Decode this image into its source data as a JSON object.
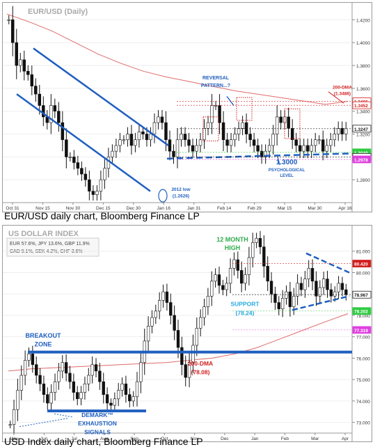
{
  "charts": {
    "eur": {
      "title": "EUR/USD (Daily)",
      "caption": "EUR/USD daily chart, Bloomberg Finance LP",
      "x_ticks": [
        "Oct 31",
        "Nov 15",
        "Nov 30",
        "Dec 15",
        "Dec 30",
        "Jan 16",
        "Jan 31",
        "Feb 14",
        "Feb 29",
        "Mar 15",
        "Mar 30",
        "Apr 16"
      ],
      "x_sublabels": [
        "2011",
        "2012"
      ],
      "y_ticks": [
        "1.4200",
        "1.4000",
        "1.3800",
        "1.3600",
        "1.3400",
        "1.3200",
        "1.3000",
        "1.2800"
      ],
      "price_tags": [
        {
          "text": "1.3486",
          "value": 1.3486,
          "color": "#d21e1e",
          "filled": false
        },
        {
          "text": "1.3452",
          "value": 1.3452,
          "color": "#d21e1e",
          "filled": false
        },
        {
          "text": "1.3247",
          "value": 1.3247,
          "color": "#1a1a1a",
          "filled": false
        },
        {
          "text": "1.3040",
          "value": 1.304,
          "color": "#2ecc40",
          "filled": true
        },
        {
          "text": "1.3000",
          "value": 1.3,
          "color": "#1a1a1a",
          "filled": false
        },
        {
          "text": "1.2978",
          "value": 1.2978,
          "color": "#e040e0",
          "filled": true
        }
      ],
      "annotations": {
        "reversal": [
          "REVERSAL",
          "PATTERN...?"
        ],
        "dma": [
          "200-DMA",
          "(1.3486)"
        ],
        "low": [
          "2012 low",
          "(1.2626)"
        ],
        "psych": [
          "1.3000",
          "PSYCHOLOGICAL",
          "LEVEL"
        ]
      }
    },
    "usd": {
      "title": "US DOLLAR INDEX",
      "caption": "USD Index daily chart, Bloomberg Finance LP",
      "weights": [
        "EUR 57.6%, JPY 13.6%, GBP 11.9%",
        "CAD 9.1%, SEK 4.2%, CHF 3.6%"
      ],
      "x_ticks": [
        "May",
        "Jun",
        "Jul",
        "Aug",
        "Sep",
        "Oct",
        "Nov",
        "Dec",
        "Jan",
        "Feb",
        "Mar",
        "Apr"
      ],
      "x_sublabels": [
        "2011",
        "2012"
      ],
      "y_ticks": [
        "81.000",
        "80.000",
        "79.000",
        "78.000",
        "77.000",
        "76.000",
        "75.000",
        "74.000",
        "73.000"
      ],
      "price_tags": [
        {
          "text": "80.420",
          "value": 80.42,
          "color": "#d21e1e",
          "filled": true
        },
        {
          "text": "78.967",
          "value": 78.967,
          "color": "#1a1a1a",
          "filled": false
        },
        {
          "text": "78.202",
          "value": 78.202,
          "color": "#2ecc40",
          "filled": true
        },
        {
          "text": "77.319",
          "value": 77.319,
          "color": "#e040e0",
          "filled": true
        }
      ],
      "annotations": {
        "high": [
          "12 MONTH",
          "HIGH"
        ],
        "breakout": [
          "BREAKOUT",
          "ZONE"
        ],
        "support": [
          "SUPPORT",
          "(78.24)"
        ],
        "dma": [
          "200-DMA",
          "(78.08)"
        ],
        "demark": [
          "DEMARK™",
          "EXHAUSTION",
          "SIGNALS"
        ]
      }
    }
  },
  "chart_data": [
    {
      "type": "candlestick",
      "title": "EUR/USD (Daily)",
      "ylim": [
        1.26,
        1.43
      ],
      "period": "Oct 2011 - Apr 2012",
      "key_levels": {
        "dma_200": 1.3486,
        "low_2012": 1.2626,
        "psychological": 1.3,
        "last": 1.3247,
        "support_tag": 1.304,
        "tag_pink": 1.2978
      },
      "closes_approx": [
        1.42,
        1.4,
        1.38,
        1.385,
        1.375,
        1.372,
        1.362,
        1.355,
        1.345,
        1.335,
        1.33,
        1.345,
        1.34,
        1.33,
        1.315,
        1.3,
        1.3,
        1.295,
        1.29,
        1.285,
        1.28,
        1.27,
        1.267,
        1.27,
        1.28,
        1.29,
        1.3,
        1.305,
        1.31,
        1.315,
        1.315,
        1.32,
        1.31,
        1.315,
        1.322,
        1.32,
        1.315,
        1.32,
        1.33,
        1.335,
        1.33,
        1.315,
        1.305,
        1.3,
        1.315,
        1.32,
        1.315,
        1.31,
        1.305,
        1.31,
        1.315,
        1.325,
        1.33,
        1.345,
        1.345,
        1.33,
        1.315,
        1.31,
        1.315,
        1.32,
        1.325,
        1.33,
        1.32,
        1.315,
        1.31,
        1.305,
        1.3,
        1.305,
        1.31,
        1.32,
        1.335,
        1.33,
        1.335,
        1.325,
        1.315,
        1.31,
        1.305,
        1.31,
        1.305,
        1.31,
        1.315,
        1.315,
        1.305,
        1.31,
        1.315,
        1.32,
        1.325,
        1.32,
        1.3247
      ]
    },
    {
      "type": "candlestick",
      "title": "US DOLLAR INDEX",
      "ylim": [
        72.5,
        82
      ],
      "period": "May 2011 - Apr 2012",
      "key_levels": {
        "breakout_zone": 76.3,
        "support": 78.24,
        "dma_200": 78.08,
        "resistance": 80.42,
        "last": 78.967
      },
      "closes_approx": [
        72.9,
        73.6,
        74.5,
        75.2,
        75.9,
        76.2,
        75.7,
        75.2,
        74.8,
        74.3,
        73.9,
        74.4,
        74.9,
        75.4,
        75.8,
        75.3,
        74.9,
        74.4,
        74.1,
        74.4,
        74.8,
        75.2,
        75.7,
        75.4,
        74.9,
        74.3,
        73.9,
        73.8,
        74.1,
        74.5,
        74.8,
        74.3,
        74.0,
        74.2,
        74.9,
        75.8,
        76.8,
        77.5,
        77.9,
        78.2,
        78.7,
        79.1,
        78.6,
        78.0,
        77.3,
        76.5,
        75.7,
        75.1,
        75.8,
        76.6,
        77.4,
        77.9,
        78.4,
        78.9,
        79.6,
        79.9,
        79.4,
        79.2,
        79.5,
        80.2,
        80.6,
        80.1,
        79.5,
        79.9,
        80.7,
        81.4,
        81.6,
        81.2,
        80.3,
        79.6,
        79.0,
        78.6,
        78.3,
        78.8,
        79.1,
        78.4,
        78.9,
        79.5,
        79.2,
        79.7,
        80.2,
        79.6,
        78.9,
        79.3,
        79.7,
        79.2,
        78.9,
        79.1,
        79.5,
        79.2,
        78.967
      ]
    }
  ]
}
